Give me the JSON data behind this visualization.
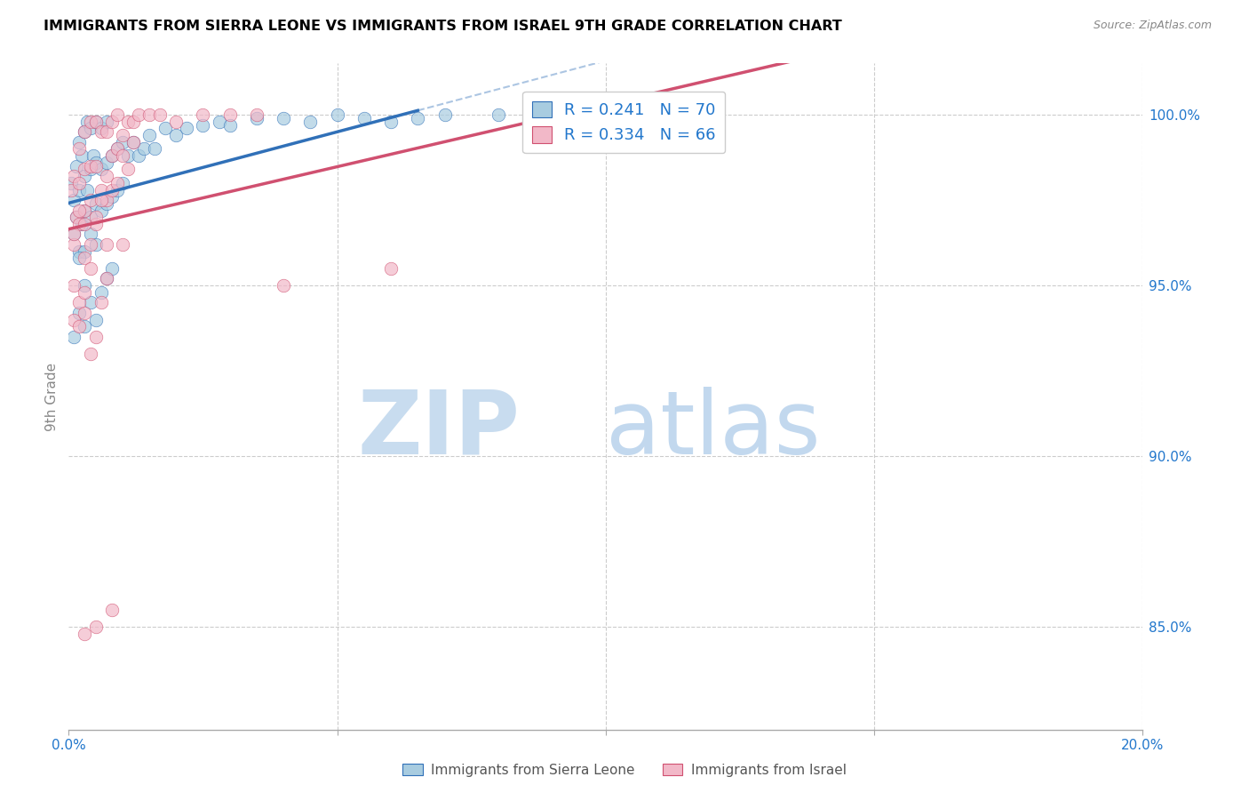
{
  "title": "IMMIGRANTS FROM SIERRA LEONE VS IMMIGRANTS FROM ISRAEL 9TH GRADE CORRELATION CHART",
  "source": "Source: ZipAtlas.com",
  "ylabel": "9th Grade",
  "ytick_labels": [
    "85.0%",
    "90.0%",
    "95.0%",
    "100.0%"
  ],
  "ytick_values": [
    0.85,
    0.9,
    0.95,
    1.0
  ],
  "legend_label1": "Immigrants from Sierra Leone",
  "legend_label2": "Immigrants from Israel",
  "legend_R1": "R = 0.241",
  "legend_N1": "N = 70",
  "legend_R2": "R = 0.334",
  "legend_N2": "N = 66",
  "color_blue": "#a8cce0",
  "color_pink": "#f2b8c8",
  "color_blue_line": "#3070b8",
  "color_pink_line": "#d05070",
  "xmin": 0.0,
  "xmax": 0.2,
  "ymin": 0.82,
  "ymax": 1.015,
  "sierra_leone_x": [
    0.0005,
    0.001,
    0.001,
    0.0015,
    0.0015,
    0.002,
    0.002,
    0.002,
    0.0025,
    0.0025,
    0.003,
    0.003,
    0.003,
    0.003,
    0.0035,
    0.0035,
    0.004,
    0.004,
    0.004,
    0.004,
    0.0045,
    0.005,
    0.005,
    0.005,
    0.005,
    0.006,
    0.006,
    0.006,
    0.007,
    0.007,
    0.007,
    0.008,
    0.008,
    0.009,
    0.009,
    0.01,
    0.01,
    0.011,
    0.012,
    0.013,
    0.014,
    0.015,
    0.016,
    0.018,
    0.02,
    0.022,
    0.025,
    0.028,
    0.03,
    0.035,
    0.04,
    0.045,
    0.05,
    0.055,
    0.06,
    0.065,
    0.07,
    0.08,
    0.09,
    0.1,
    0.001,
    0.002,
    0.003,
    0.003,
    0.004,
    0.005,
    0.006,
    0.007,
    0.008,
    0.002
  ],
  "sierra_leone_y": [
    0.98,
    0.975,
    0.965,
    0.97,
    0.985,
    0.96,
    0.978,
    0.992,
    0.968,
    0.988,
    0.972,
    0.982,
    0.995,
    0.96,
    0.978,
    0.998,
    0.97,
    0.984,
    0.996,
    0.965,
    0.988,
    0.974,
    0.986,
    0.998,
    0.962,
    0.972,
    0.984,
    0.996,
    0.974,
    0.986,
    0.998,
    0.976,
    0.988,
    0.978,
    0.99,
    0.98,
    0.992,
    0.988,
    0.992,
    0.988,
    0.99,
    0.994,
    0.99,
    0.996,
    0.994,
    0.996,
    0.997,
    0.998,
    0.997,
    0.999,
    0.999,
    0.998,
    1.0,
    0.999,
    0.998,
    0.999,
    1.0,
    1.0,
    1.0,
    1.0,
    0.935,
    0.942,
    0.938,
    0.95,
    0.945,
    0.94,
    0.948,
    0.952,
    0.955,
    0.958
  ],
  "israel_x": [
    0.0005,
    0.001,
    0.001,
    0.0015,
    0.002,
    0.002,
    0.002,
    0.003,
    0.003,
    0.003,
    0.004,
    0.004,
    0.004,
    0.005,
    0.005,
    0.005,
    0.006,
    0.006,
    0.007,
    0.007,
    0.007,
    0.008,
    0.008,
    0.009,
    0.009,
    0.01,
    0.011,
    0.012,
    0.013,
    0.015,
    0.017,
    0.02,
    0.025,
    0.03,
    0.035,
    0.12,
    0.001,
    0.002,
    0.003,
    0.004,
    0.005,
    0.006,
    0.007,
    0.008,
    0.009,
    0.01,
    0.011,
    0.012,
    0.003,
    0.004,
    0.001,
    0.002,
    0.001,
    0.002,
    0.003,
    0.004,
    0.005,
    0.003,
    0.006,
    0.007,
    0.04,
    0.06,
    0.01,
    0.005,
    0.003,
    0.008
  ],
  "israel_y": [
    0.978,
    0.962,
    0.982,
    0.97,
    0.968,
    0.98,
    0.99,
    0.972,
    0.984,
    0.995,
    0.975,
    0.985,
    0.998,
    0.968,
    0.985,
    0.998,
    0.978,
    0.995,
    0.982,
    0.975,
    0.995,
    0.988,
    0.998,
    0.99,
    1.0,
    0.994,
    0.998,
    0.998,
    1.0,
    1.0,
    1.0,
    0.998,
    1.0,
    1.0,
    1.0,
    1.0,
    0.965,
    0.972,
    0.968,
    0.962,
    0.97,
    0.975,
    0.962,
    0.978,
    0.98,
    0.988,
    0.984,
    0.992,
    0.958,
    0.955,
    0.95,
    0.945,
    0.94,
    0.938,
    0.942,
    0.93,
    0.935,
    0.948,
    0.945,
    0.952,
    0.95,
    0.955,
    0.962,
    0.85,
    0.848,
    0.855
  ]
}
